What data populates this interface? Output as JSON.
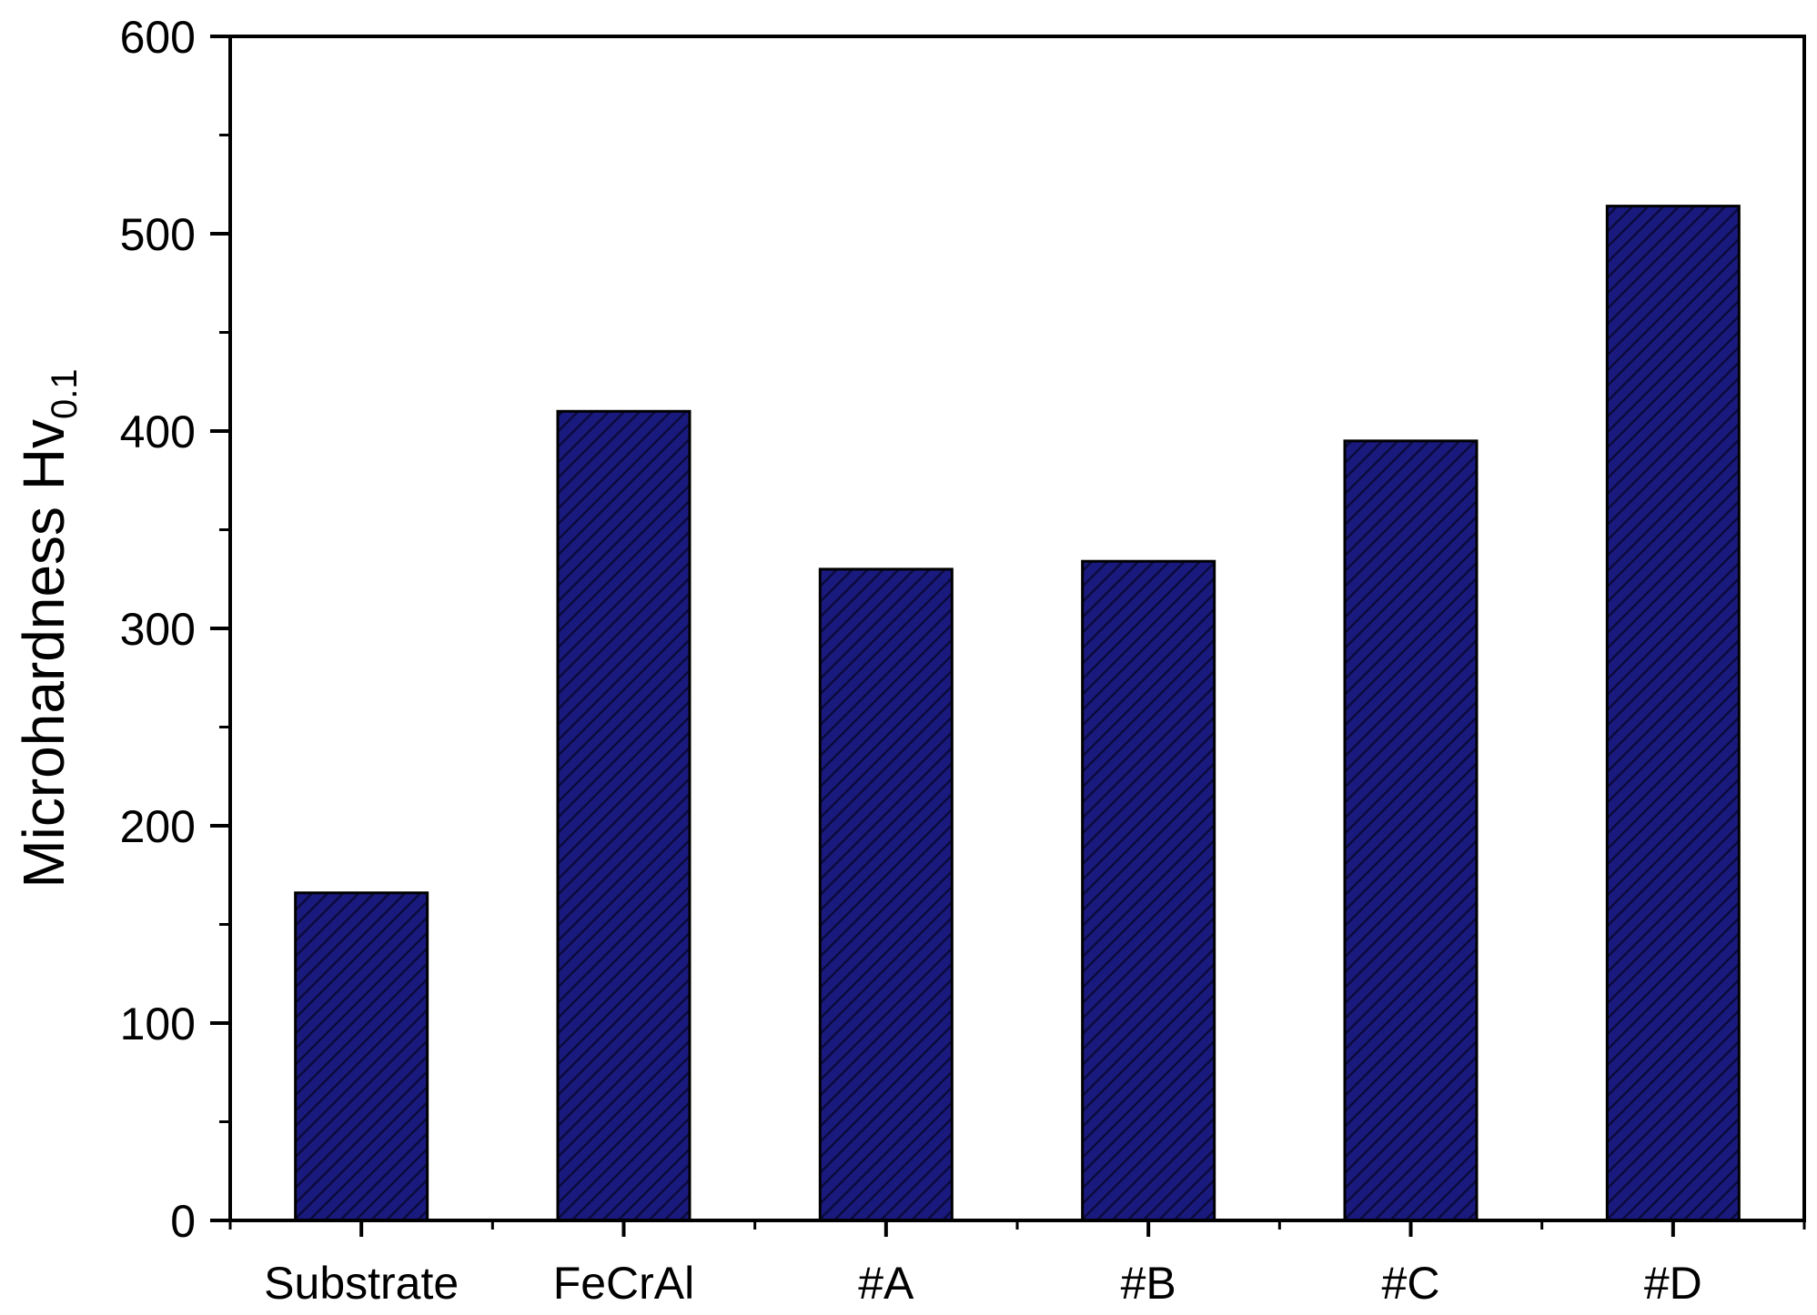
{
  "chart_data": {
    "type": "bar",
    "categories": [
      "Substrate",
      "FeCrAl",
      "#A",
      "#B",
      "#C",
      "#D"
    ],
    "values": [
      166,
      410,
      330,
      334,
      395,
      514
    ],
    "title": "",
    "xlabel": "",
    "ylabel_main": "Microhardness Hv",
    "ylabel_sub": "0.1",
    "ylim": [
      0,
      600
    ],
    "y_major_ticks": [
      0,
      100,
      200,
      300,
      400,
      500,
      600
    ],
    "y_minor_step": 50,
    "grid": false,
    "bar_fill": "#1a1a7e",
    "bar_hatch": "#0b0b3d",
    "bar_edge": "#000000"
  }
}
